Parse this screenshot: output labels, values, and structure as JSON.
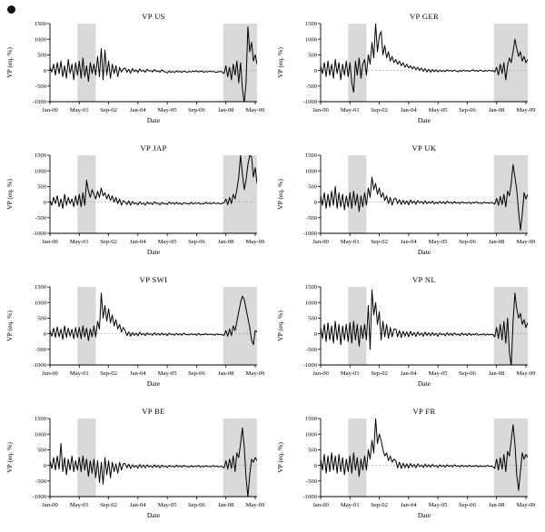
{
  "figure": {
    "xlabel": "Date",
    "ylabel": "VP (eq. %)",
    "x_ticks": [
      "Jan-00",
      "May-01",
      "Sep-02",
      "Jan-04",
      "May-05",
      "Sep-06",
      "Jan-08",
      "May-09"
    ],
    "x_tick_indices": [
      0,
      16,
      32,
      48,
      64,
      80,
      96,
      112
    ],
    "x_unit": "monthly index from Jan-00",
    "y_ticks": [
      -1000,
      -500,
      0,
      500,
      1000,
      1500
    ],
    "ylim": [
      -1000,
      1500
    ],
    "grid": "zero-line-only",
    "legend": "none",
    "shaded_bands": [
      {
        "start": 15,
        "end": 25
      },
      {
        "start": 94.5,
        "end": 114
      }
    ],
    "band_color": "#d9d9d9",
    "line_color": "#000000"
  },
  "chart_data": [
    {
      "type": "line",
      "title": "VP US",
      "xlabel": "Date",
      "ylabel": "VP (eq. %)",
      "ylim": [
        -1000,
        1500
      ],
      "values": [
        100,
        -50,
        200,
        -150,
        250,
        -100,
        300,
        -200,
        150,
        -250,
        350,
        -100,
        200,
        -300,
        250,
        -150,
        300,
        -250,
        400,
        -200,
        150,
        -350,
        250,
        -100,
        200,
        -150,
        450,
        -200,
        700,
        -300,
        650,
        -150,
        300,
        -250,
        200,
        -100,
        150,
        -200,
        100,
        -50,
        50,
        80,
        -60,
        40,
        -90,
        60,
        -40,
        20,
        -70,
        50,
        -30,
        10,
        -60,
        40,
        -20,
        0,
        -50,
        30,
        -40,
        -10,
        -60,
        20,
        -30,
        -50,
        -80,
        -20,
        -60,
        -30,
        -70,
        -10,
        -50,
        -30,
        -60,
        -20,
        -40,
        -60,
        -30,
        -50,
        -20,
        -40,
        -10,
        -50,
        -30,
        -20,
        -60,
        -30,
        -50,
        -20,
        -40,
        -30,
        -50,
        -60,
        -40,
        -30,
        -50,
        -100,
        150,
        -200,
        100,
        -300,
        200,
        -150,
        300,
        -400,
        250,
        -600,
        -1050,
        -400,
        1400,
        600,
        900,
        300,
        500,
        200
      ]
    },
    {
      "type": "line",
      "title": "VP GER",
      "xlabel": "Date",
      "ylabel": "VP (eq. %)",
      "ylim": [
        -1000,
        1500
      ],
      "values": [
        150,
        -100,
        250,
        -200,
        300,
        -150,
        200,
        -250,
        350,
        -100,
        250,
        -300,
        200,
        -150,
        300,
        -200,
        250,
        -400,
        -700,
        300,
        -150,
        400,
        -250,
        200,
        350,
        -150,
        500,
        200,
        900,
        400,
        1500,
        600,
        1100,
        1250,
        500,
        800,
        400,
        600,
        300,
        450,
        250,
        350,
        200,
        300,
        150,
        250,
        100,
        200,
        80,
        150,
        50,
        120,
        30,
        100,
        0,
        80,
        -30,
        60,
        -50,
        40,
        -60,
        30,
        -40,
        20,
        -50,
        10,
        -30,
        0,
        -40,
        20,
        -20,
        0,
        -30,
        10,
        -20,
        -40,
        0,
        -30,
        10,
        -20,
        0,
        -30,
        -10,
        20,
        -20,
        0,
        -30,
        10,
        -10,
        -30,
        0,
        -20,
        10,
        -20,
        0,
        -50,
        100,
        -150,
        200,
        -100,
        250,
        -300,
        150,
        400,
        250,
        600,
        1000,
        700,
        450,
        600,
        300,
        450,
        250,
        350
      ]
    },
    {
      "type": "line",
      "title": "VP JAP",
      "xlabel": "Date",
      "ylabel": "VP (eq. %)",
      "ylim": [
        -1000,
        1500
      ],
      "values": [
        50,
        -100,
        150,
        -50,
        200,
        -150,
        100,
        -200,
        250,
        -100,
        150,
        -50,
        100,
        -150,
        200,
        -100,
        250,
        -150,
        300,
        -100,
        700,
        350,
        150,
        400,
        250,
        100,
        350,
        150,
        450,
        200,
        300,
        100,
        250,
        50,
        200,
        0,
        150,
        -50,
        100,
        -100,
        50,
        0,
        -80,
        40,
        -100,
        20,
        -60,
        -20,
        -90,
        10,
        -70,
        -30,
        -100,
        0,
        -60,
        -20,
        -80,
        10,
        -50,
        -30,
        -90,
        -10,
        -60,
        -40,
        -80,
        0,
        -50,
        -20,
        -70,
        -10,
        -60,
        -30,
        -80,
        -20,
        -50,
        -40,
        -70,
        -10,
        -60,
        -30,
        -50,
        -20,
        -70,
        -40,
        -60,
        -10,
        -50,
        -30,
        -60,
        -20,
        -40,
        -50,
        -30,
        -60,
        -40,
        -20,
        100,
        -80,
        150,
        -50,
        250,
        100,
        400,
        800,
        1500,
        900,
        400,
        700,
        1200,
        1500,
        1450,
        800,
        1100,
        600
      ]
    },
    {
      "type": "line",
      "title": "VP UK",
      "xlabel": "Date",
      "ylabel": "VP (eq. %)",
      "ylim": [
        -1000,
        1500
      ],
      "values": [
        200,
        -100,
        300,
        -200,
        250,
        -150,
        350,
        -100,
        500,
        -200,
        300,
        -150,
        250,
        -250,
        200,
        -150,
        300,
        -200,
        350,
        -100,
        250,
        -300,
        200,
        -150,
        300,
        -100,
        450,
        150,
        800,
        400,
        600,
        250,
        450,
        150,
        300,
        50,
        200,
        -50,
        150,
        -100,
        100,
        120,
        -50,
        80,
        -80,
        60,
        -60,
        40,
        -90,
        70,
        -40,
        30,
        -70,
        50,
        -30,
        20,
        -60,
        40,
        -50,
        10,
        -40,
        30,
        -60,
        0,
        -50,
        20,
        -40,
        10,
        -60,
        30,
        -30,
        0,
        -50,
        20,
        -40,
        -10,
        -50,
        10,
        -30,
        -20,
        -40,
        0,
        -50,
        -10,
        -30,
        10,
        -40,
        -20,
        -50,
        0,
        -30,
        -20,
        -40,
        -10,
        -30,
        -60,
        120,
        -100,
        180,
        -80,
        250,
        -150,
        350,
        200,
        600,
        1200,
        800,
        400,
        -300,
        -900,
        -400,
        300,
        100,
        250
      ]
    },
    {
      "type": "line",
      "title": "VP SWI",
      "xlabel": "Date",
      "ylabel": "VP (eq. %)",
      "ylim": [
        -1000,
        1500
      ],
      "values": [
        100,
        -80,
        180,
        -120,
        220,
        -100,
        150,
        -180,
        250,
        -120,
        180,
        -80,
        140,
        -160,
        200,
        -120,
        200,
        -160,
        250,
        -100,
        180,
        -220,
        150,
        -100,
        250,
        -100,
        400,
        150,
        1300,
        500,
        900,
        400,
        800,
        350,
        600,
        250,
        450,
        150,
        300,
        50,
        200,
        100,
        -60,
        60,
        -80,
        40,
        -50,
        20,
        -70,
        50,
        -40,
        10,
        -60,
        30,
        -30,
        0,
        -50,
        30,
        -40,
        10,
        -50,
        20,
        -40,
        0,
        -60,
        20,
        -30,
        -10,
        -50,
        10,
        -40,
        0,
        -50,
        20,
        -30,
        -20,
        -40,
        0,
        -30,
        -10,
        -50,
        10,
        -40,
        -20,
        -30,
        0,
        -40,
        -10,
        -30,
        -20,
        -50,
        0,
        -30,
        -20,
        -40,
        -50,
        100,
        -80,
        150,
        -60,
        250,
        100,
        400,
        700,
        1000,
        1200,
        1100,
        800,
        500,
        200,
        -200,
        -350,
        100,
        50
      ]
    },
    {
      "type": "line",
      "title": "VP NL",
      "xlabel": "Date",
      "ylabel": "VP (eq. %)",
      "ylim": [
        -1000,
        1500
      ],
      "values": [
        200,
        -150,
        300,
        -250,
        350,
        -200,
        250,
        -300,
        400,
        -200,
        300,
        -350,
        250,
        -200,
        300,
        -250,
        350,
        -300,
        400,
        -200,
        300,
        -400,
        250,
        -150,
        300,
        -200,
        900,
        -500,
        1400,
        600,
        1000,
        300,
        700,
        -200,
        400,
        -100,
        300,
        -150,
        200,
        -100,
        150,
        150,
        -100,
        100,
        -120,
        80,
        -80,
        60,
        -100,
        80,
        -60,
        40,
        -90,
        60,
        -50,
        20,
        -80,
        50,
        -60,
        30,
        -70,
        40,
        -50,
        10,
        -80,
        30,
        -40,
        0,
        -70,
        30,
        -50,
        10,
        -60,
        30,
        -40,
        -10,
        -60,
        20,
        -40,
        0,
        -60,
        20,
        -50,
        -10,
        -40,
        10,
        -50,
        -20,
        -40,
        0,
        -50,
        -10,
        -40,
        -20,
        -30,
        -100,
        200,
        -150,
        300,
        -200,
        400,
        -300,
        500,
        -600,
        -1050,
        400,
        1300,
        800,
        500,
        650,
        300,
        450,
        200,
        350
      ]
    },
    {
      "type": "line",
      "title": "VP BE",
      "xlabel": "Date",
      "ylabel": "VP (eq. %)",
      "ylim": [
        -1000,
        1500
      ],
      "values": [
        150,
        -100,
        250,
        -150,
        300,
        -120,
        700,
        -200,
        250,
        -300,
        200,
        -150,
        300,
        -200,
        150,
        -150,
        250,
        -200,
        300,
        -150,
        200,
        -350,
        150,
        -250,
        200,
        -400,
        150,
        -550,
        100,
        -600,
        250,
        -300,
        150,
        -400,
        100,
        -200,
        50,
        -250,
        100,
        -150,
        50,
        60,
        -80,
        40,
        -100,
        20,
        -60,
        0,
        -90,
        30,
        -70,
        10,
        -80,
        20,
        -50,
        -10,
        -70,
        20,
        -60,
        0,
        -80,
        10,
        -50,
        -20,
        -70,
        0,
        -40,
        -20,
        -60,
        10,
        -50,
        -10,
        -60,
        0,
        -40,
        -30,
        -60,
        -10,
        -50,
        -20,
        -40,
        0,
        -60,
        -20,
        -50,
        -10,
        -40,
        -30,
        -50,
        0,
        -40,
        -20,
        -50,
        -30,
        -40,
        -80,
        150,
        -120,
        200,
        -100,
        300,
        -200,
        400,
        250,
        700,
        1200,
        600,
        -400,
        -1000,
        -300,
        200,
        100,
        250,
        150
      ]
    },
    {
      "type": "line",
      "title": "VP FR",
      "xlabel": "Date",
      "ylabel": "VP (eq. %)",
      "ylim": [
        -1000,
        1500
      ],
      "values": [
        200,
        -150,
        350,
        -250,
        300,
        -200,
        400,
        -150,
        300,
        -250,
        350,
        -200,
        250,
        -300,
        200,
        -200,
        300,
        -250,
        400,
        -150,
        250,
        -350,
        200,
        -150,
        300,
        -150,
        500,
        200,
        800,
        400,
        1500,
        700,
        1000,
        800,
        500,
        300,
        400,
        150,
        300,
        100,
        200,
        150,
        -80,
        100,
        -100,
        70,
        -70,
        50,
        -90,
        60,
        -50,
        30,
        -80,
        50,
        -40,
        10,
        -70,
        40,
        -50,
        20,
        -60,
        30,
        -40,
        0,
        -70,
        20,
        -40,
        0,
        -60,
        20,
        -40,
        0,
        -50,
        20,
        -30,
        -10,
        -50,
        10,
        -40,
        -10,
        -50,
        10,
        -40,
        -20,
        -30,
        0,
        -50,
        -10,
        -40,
        -20,
        -40,
        0,
        -30,
        -20,
        -40,
        -100,
        200,
        -150,
        250,
        -120,
        350,
        -200,
        450,
        300,
        800,
        1300,
        700,
        -300,
        -800,
        -200,
        400,
        200,
        350,
        250
      ]
    }
  ]
}
